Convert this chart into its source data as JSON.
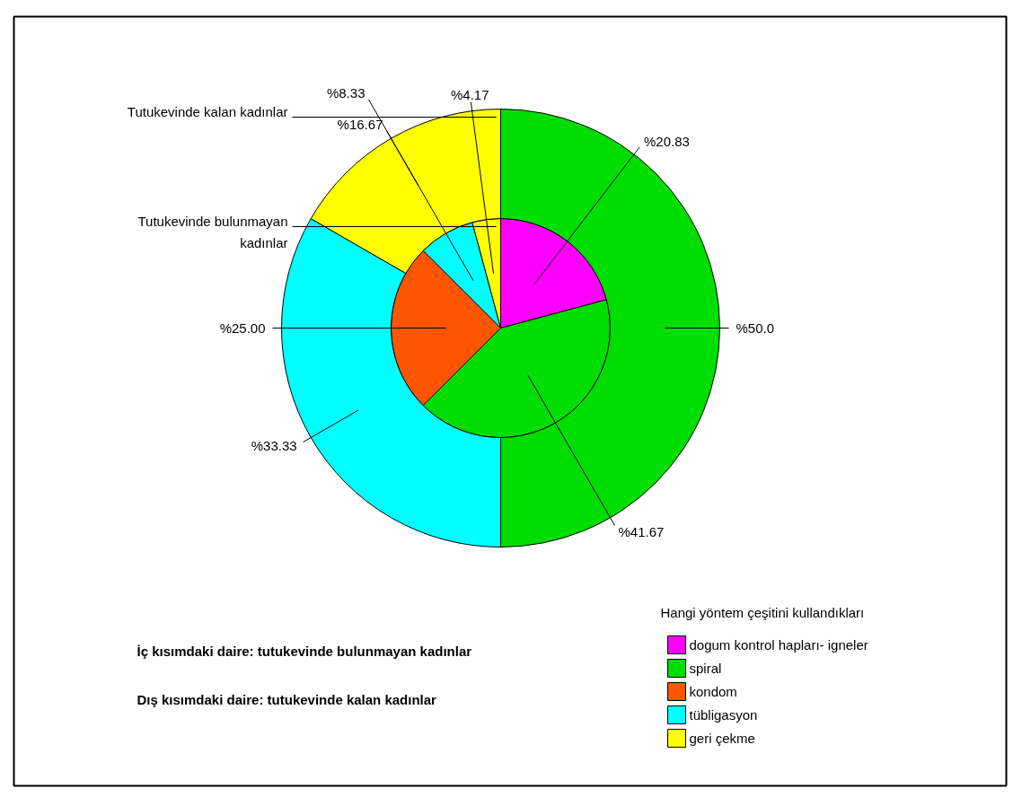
{
  "chart_data": {
    "type": "donut",
    "categories": [
      "dogum kontrol hapları- igneler",
      "spiral",
      "kondom",
      "tübligasyon",
      "geri çekme"
    ],
    "colors": [
      "#ff00ff",
      "#00dd00",
      "#ff5500",
      "#00ffff",
      "#ffff00"
    ],
    "legend": "bottom right",
    "legend_title": "Hangi yöntem çeşitini kullandıkları",
    "series": [
      {
        "name": "Tutukevinde bulunmayan kadınlar",
        "values": [
          20.83,
          41.67,
          25.0,
          8.33,
          4.17
        ],
        "value_labels": [
          "%20.83",
          "%41.67",
          "%25.00",
          "%8.33",
          "%4.17"
        ]
      },
      {
        "name": "Tutukevinde kalan kadınlar",
        "values": [
          0,
          50.0,
          0,
          33.33,
          16.67
        ],
        "value_labels": [
          null,
          "%50.0",
          null,
          "%33.33",
          "%16.67"
        ]
      }
    ],
    "annotations": [
      "İç kısımdaki daire: tutukevinde bulunmayan kadınlar",
      "Dış kısımdaki daire: tutukevinde kalan kadınlar"
    ]
  }
}
